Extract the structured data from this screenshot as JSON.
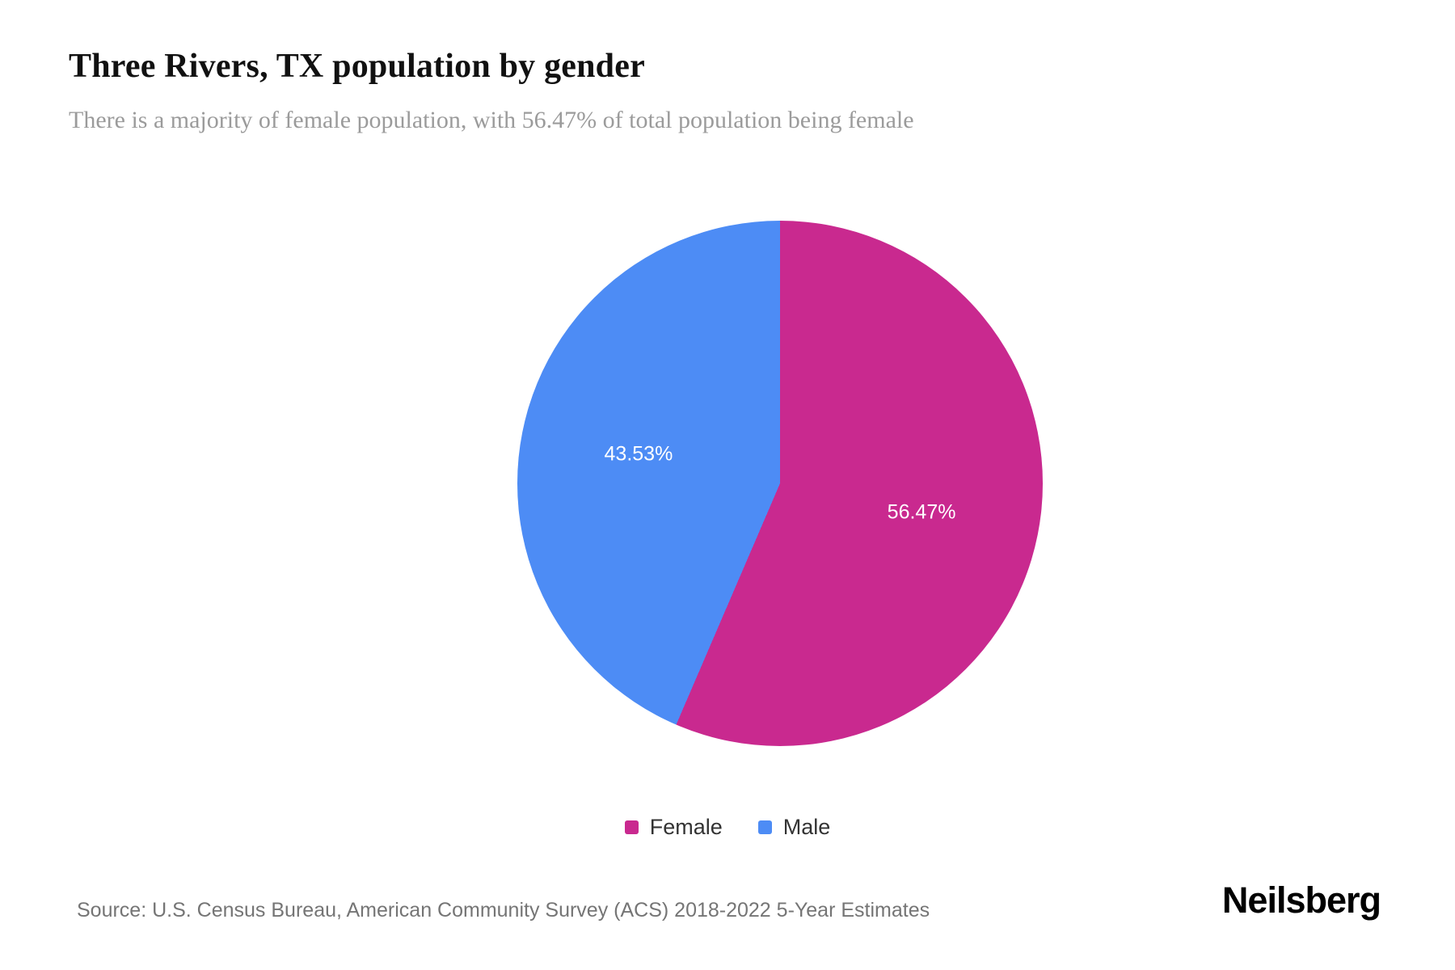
{
  "header": {
    "title": "Three Rivers, TX population by gender",
    "subtitle": "There is a majority of female population, with 56.47% of total population being female"
  },
  "chart_data": {
    "type": "pie",
    "title": "Three Rivers, TX population by gender",
    "start_angle_deg": 0,
    "direction": "clockwise",
    "legend_position": "bottom",
    "label_color": "#ffffff",
    "slices": [
      {
        "label": "Female",
        "value": 56.47,
        "display": "56.47%",
        "color": "#c9298f"
      },
      {
        "label": "Male",
        "value": 43.53,
        "display": "43.53%",
        "color": "#4d8cf5"
      }
    ]
  },
  "legend": {
    "items": [
      {
        "label": "Female",
        "color": "#c9298f"
      },
      {
        "label": "Male",
        "color": "#4d8cf5"
      }
    ]
  },
  "footer": {
    "source": "Source: U.S. Census Bureau, American Community Survey (ACS) 2018-2022 5-Year Estimates",
    "brand": "Neilsberg"
  }
}
